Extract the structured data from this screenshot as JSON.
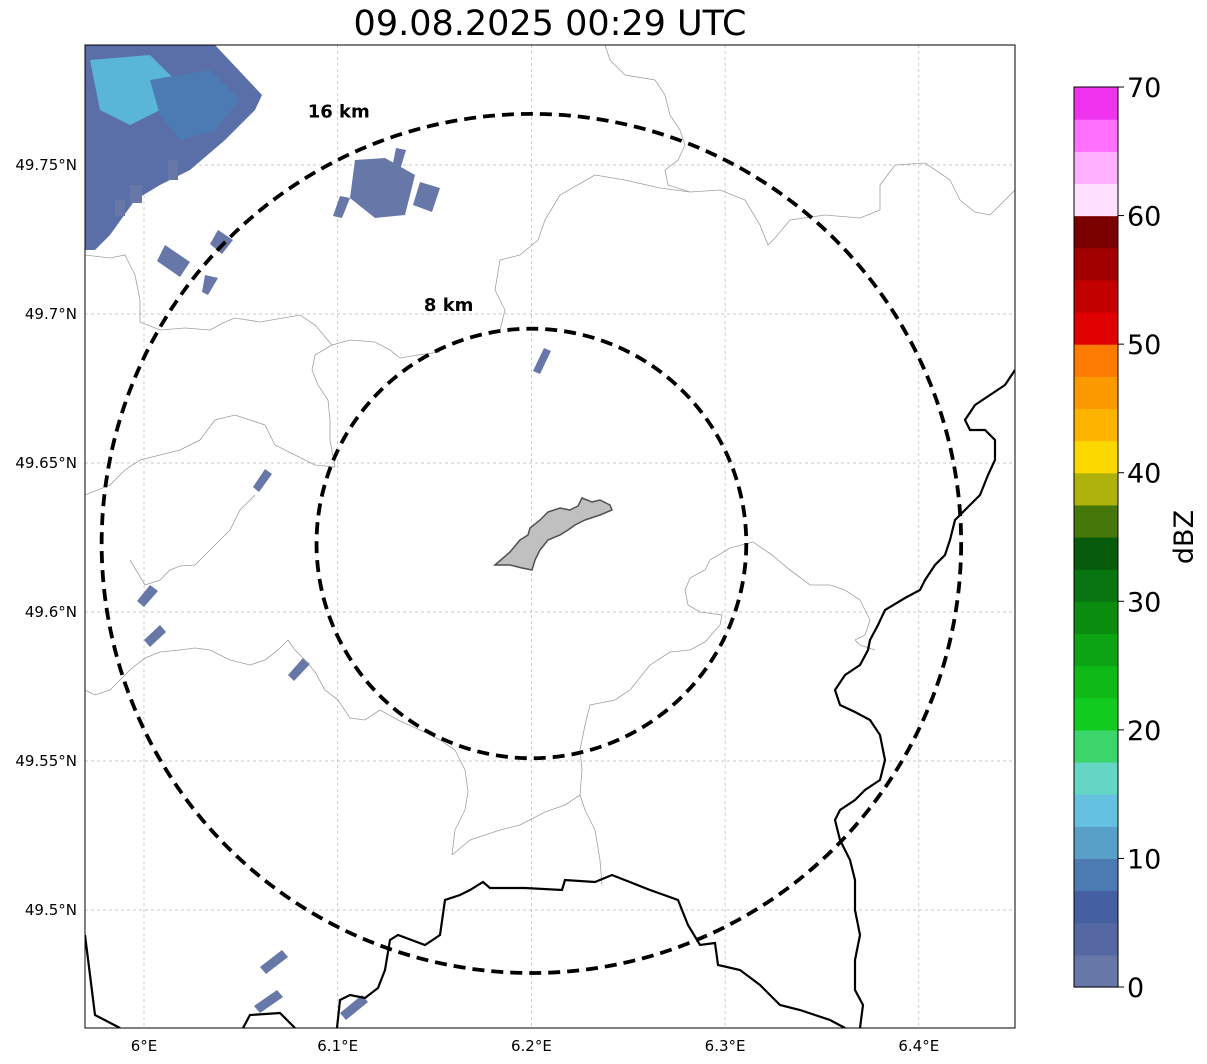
{
  "title": "09.08.2025 00:29 UTC",
  "map": {
    "lon_range": [
      5.97,
      6.45
    ],
    "lat_range": [
      49.46,
      49.79
    ],
    "lon_ticks": [
      {
        "value": 6.0,
        "label": "6°E"
      },
      {
        "value": 6.1,
        "label": "6.1°E"
      },
      {
        "value": 6.2,
        "label": "6.2°E"
      },
      {
        "value": 6.3,
        "label": "6.3°E"
      },
      {
        "value": 6.4,
        "label": "6.4°E"
      }
    ],
    "lat_ticks": [
      {
        "value": 49.5,
        "label": "49.5°N"
      },
      {
        "value": 49.55,
        "label": "49.55°N"
      },
      {
        "value": 49.6,
        "label": "49.6°N"
      },
      {
        "value": 49.65,
        "label": "49.65°N"
      },
      {
        "value": 49.7,
        "label": "49.7°N"
      },
      {
        "value": 49.75,
        "label": "49.75°N"
      }
    ],
    "grid": true,
    "center": {
      "lon": 6.2,
      "lat": 49.623
    },
    "rings": [
      {
        "radius_km": 8,
        "label": "8 km",
        "label_lon": 6.16,
        "label_lat": 49.703
      },
      {
        "radius_km": 16,
        "label": "16 km",
        "label_lon": 6.1,
        "label_lat": 49.768
      }
    ],
    "precip_color": "#6777a8"
  },
  "colorbar": {
    "label": "dBZ",
    "vmin": 0,
    "vmax": 70,
    "step": 2.5,
    "colors": [
      "#6677a8",
      "#5668a3",
      "#4460a2",
      "#4c7bb4",
      "#58a0c8",
      "#64c1e0",
      "#63d6c4",
      "#3cd56c",
      "#12cb1f",
      "#0fb916",
      "#0ca412",
      "#0a8c0f",
      "#087610",
      "#065c0c",
      "#457808",
      "#aeb20a",
      "#fdd700",
      "#fdb300",
      "#fd9900",
      "#fd7b00",
      "#e00000",
      "#c20000",
      "#a20000",
      "#7a0000",
      "#ffe0ff",
      "#ffb0ff",
      "#ff70ff",
      "#ef33ef"
    ],
    "ticks": [
      {
        "value": 0,
        "label": "0"
      },
      {
        "value": 10,
        "label": "10"
      },
      {
        "value": 20,
        "label": "20"
      },
      {
        "value": 30,
        "label": "30"
      },
      {
        "value": 40,
        "label": "40"
      },
      {
        "value": 50,
        "label": "50"
      },
      {
        "value": 60,
        "label": "60"
      },
      {
        "value": 70,
        "label": "70"
      }
    ]
  }
}
